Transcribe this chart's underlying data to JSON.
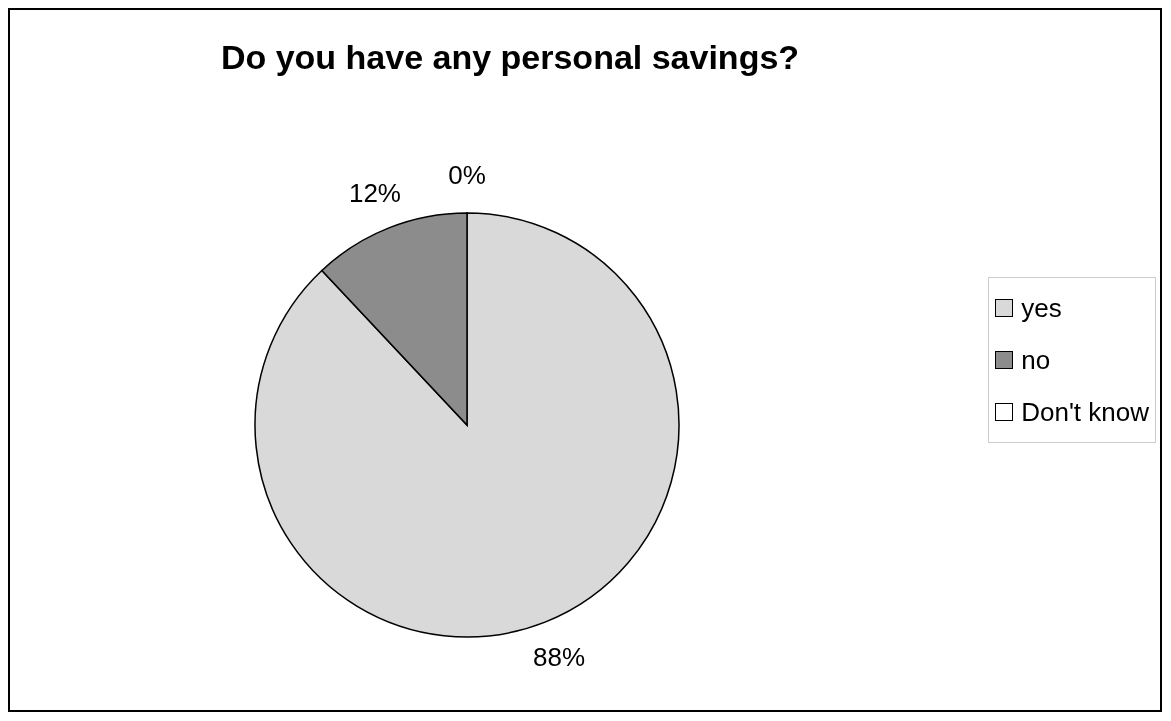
{
  "chart_data": {
    "type": "pie",
    "title": "Do you have any personal savings?",
    "categories": [
      "yes",
      "no",
      "Don't know"
    ],
    "values": [
      88,
      12,
      0
    ],
    "value_labels": [
      "88%",
      "12%",
      "0%"
    ],
    "colors": [
      "#d9d9d9",
      "#8c8c8c",
      "#ffffff"
    ],
    "legend": "right"
  }
}
